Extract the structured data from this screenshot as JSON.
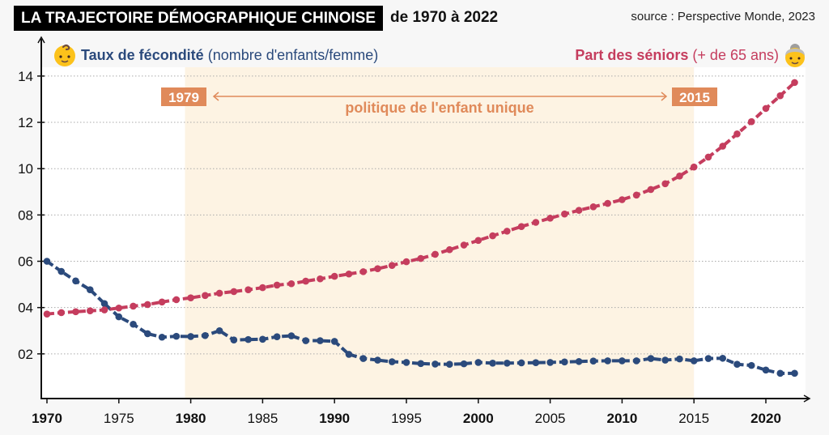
{
  "header": {
    "title": "LA TRAJECTOIRE DÉMOGRAPHIQUE CHINOISE",
    "subtitle": "de 1970 à 2022",
    "source": "source : Perspective Monde, 2023"
  },
  "legend": {
    "fertility": {
      "strong": "Taux de fécondité",
      "light": "(nombre d'enfants/femme)",
      "icon": "baby-emoji-icon",
      "color": "#2b4a7c"
    },
    "seniors": {
      "strong": "Part des séniors",
      "light": "(+ de 65 ans)",
      "icon": "old-woman-emoji-icon",
      "color": "#c53d5e"
    }
  },
  "annotation": {
    "start_label": "1979",
    "end_label": "2015",
    "text": "politique de l'enfant unique",
    "start_year": 1979.6,
    "end_year": 2015,
    "box_color": "#e08a5a",
    "band_color": "#fdf3e3"
  },
  "chart_data": {
    "type": "line",
    "title": "LA TRAJECTOIRE DÉMOGRAPHIQUE CHINOISE de 1970 à 2022",
    "xlabel": "",
    "ylabel": "",
    "xlim": [
      1970,
      2022
    ],
    "ylim": [
      0,
      14
    ],
    "grid": true,
    "legend_position": "top",
    "x_ticks": [
      {
        "value": 1970,
        "label": "1970",
        "bold": true
      },
      {
        "value": 1975,
        "label": "1975",
        "bold": false
      },
      {
        "value": 1980,
        "label": "1980",
        "bold": true
      },
      {
        "value": 1985,
        "label": "1985",
        "bold": false
      },
      {
        "value": 1990,
        "label": "1990",
        "bold": true
      },
      {
        "value": 1995,
        "label": "1995",
        "bold": false
      },
      {
        "value": 2000,
        "label": "2000",
        "bold": true
      },
      {
        "value": 2005,
        "label": "2005",
        "bold": false
      },
      {
        "value": 2010,
        "label": "2010",
        "bold": true
      },
      {
        "value": 2015,
        "label": "2015",
        "bold": false
      },
      {
        "value": 2020,
        "label": "2020",
        "bold": true
      }
    ],
    "y_ticks": [
      {
        "value": 2,
        "label": "02"
      },
      {
        "value": 4,
        "label": "04"
      },
      {
        "value": 6,
        "label": "06"
      },
      {
        "value": 8,
        "label": "08"
      },
      {
        "value": 10,
        "label": "10"
      },
      {
        "value": 12,
        "label": "12"
      },
      {
        "value": 14,
        "label": "14"
      }
    ],
    "x": [
      1970,
      1971,
      1972,
      1973,
      1974,
      1975,
      1976,
      1977,
      1978,
      1979,
      1980,
      1981,
      1982,
      1983,
      1984,
      1985,
      1986,
      1987,
      1988,
      1989,
      1990,
      1991,
      1992,
      1993,
      1994,
      1995,
      1996,
      1997,
      1998,
      1999,
      2000,
      2001,
      2002,
      2003,
      2004,
      2005,
      2006,
      2007,
      2008,
      2009,
      2010,
      2011,
      2012,
      2013,
      2014,
      2015,
      2016,
      2017,
      2018,
      2019,
      2020,
      2021,
      2022
    ],
    "series": [
      {
        "name": "Taux de fécondité (nombre d'enfants/femme)",
        "color": "#2b4a7c",
        "values": [
          6.0,
          5.56,
          5.15,
          4.77,
          4.17,
          3.6,
          3.28,
          2.87,
          2.72,
          2.76,
          2.75,
          2.79,
          3.0,
          2.6,
          2.62,
          2.63,
          2.74,
          2.78,
          2.57,
          2.57,
          2.54,
          1.98,
          1.8,
          1.73,
          1.66,
          1.63,
          1.58,
          1.56,
          1.55,
          1.57,
          1.63,
          1.6,
          1.6,
          1.61,
          1.62,
          1.63,
          1.65,
          1.67,
          1.69,
          1.7,
          1.7,
          1.7,
          1.8,
          1.73,
          1.78,
          1.7,
          1.8,
          1.81,
          1.55,
          1.5,
          1.3,
          1.16,
          1.16
        ]
      },
      {
        "name": "Part des séniors (+ de 65 ans)",
        "color": "#c53d5e",
        "values": [
          3.72,
          3.78,
          3.82,
          3.86,
          3.9,
          3.98,
          4.06,
          4.13,
          4.24,
          4.34,
          4.42,
          4.52,
          4.62,
          4.69,
          4.77,
          4.86,
          4.97,
          5.03,
          5.14,
          5.24,
          5.35,
          5.45,
          5.55,
          5.68,
          5.82,
          5.98,
          6.12,
          6.3,
          6.5,
          6.7,
          6.9,
          7.1,
          7.3,
          7.5,
          7.68,
          7.86,
          8.04,
          8.2,
          8.35,
          8.5,
          8.66,
          8.86,
          9.1,
          9.35,
          9.68,
          10.07,
          10.5,
          10.97,
          11.5,
          12.03,
          12.6,
          13.15,
          13.72
        ]
      }
    ]
  }
}
